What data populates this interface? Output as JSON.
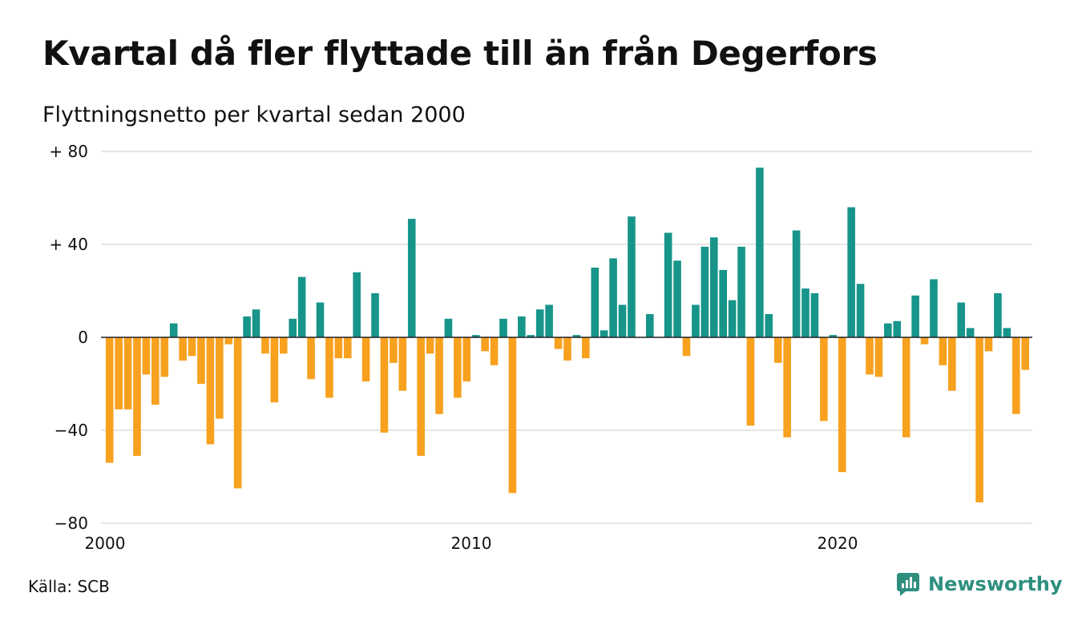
{
  "header": {
    "title": "Kvartal då fler flyttade till än från Degerfors",
    "subtitle": "Flyttningsnetto per kvartal sedan 2000"
  },
  "footer": {
    "source": "Källa: SCB",
    "brand": "Newsworthy",
    "brand_icon": "newsworthy-logo-icon"
  },
  "colors": {
    "positive": "#17958a",
    "negative": "#f7a11f",
    "grid": "#dddddd",
    "axis": "#222222",
    "brand": "#2e8f7f"
  },
  "chart_data": {
    "type": "bar",
    "x_start": 2000,
    "period": "quarter",
    "ylim": [
      -80,
      80
    ],
    "yticks": [
      {
        "value": 80,
        "label": "+ 80"
      },
      {
        "value": 40,
        "label": "+ 40"
      },
      {
        "value": 0,
        "label": "0"
      },
      {
        "value": -40,
        "label": "−40"
      },
      {
        "value": -80,
        "label": "−80"
      }
    ],
    "xticks": [
      "2000",
      "2010",
      "2020"
    ],
    "grid": true,
    "values": [
      -54,
      -31,
      -31,
      -51,
      -16,
      -29,
      -17,
      6,
      -10,
      -8,
      -20,
      -46,
      -35,
      -3,
      -65,
      9,
      12,
      -7,
      -28,
      -7,
      8,
      26,
      -18,
      15,
      -26,
      -9,
      -9,
      28,
      -19,
      19,
      -41,
      -11,
      -23,
      51,
      -51,
      -7,
      -33,
      8,
      -26,
      -19,
      1,
      -6,
      -12,
      8,
      -67,
      9,
      1,
      12,
      14,
      -5,
      -10,
      1,
      -9,
      30,
      3,
      34,
      14,
      52,
      0,
      10,
      0,
      45,
      33,
      -8,
      14,
      39,
      43,
      29,
      16,
      39,
      -38,
      73,
      10,
      -11,
      -43,
      46,
      21,
      19,
      -36,
      1,
      -58,
      56,
      23,
      -16,
      -17,
      6,
      7,
      -43,
      18,
      -3,
      25,
      -12,
      -23,
      15,
      4,
      -71,
      -6,
      19,
      4,
      -33,
      -14
    ]
  }
}
